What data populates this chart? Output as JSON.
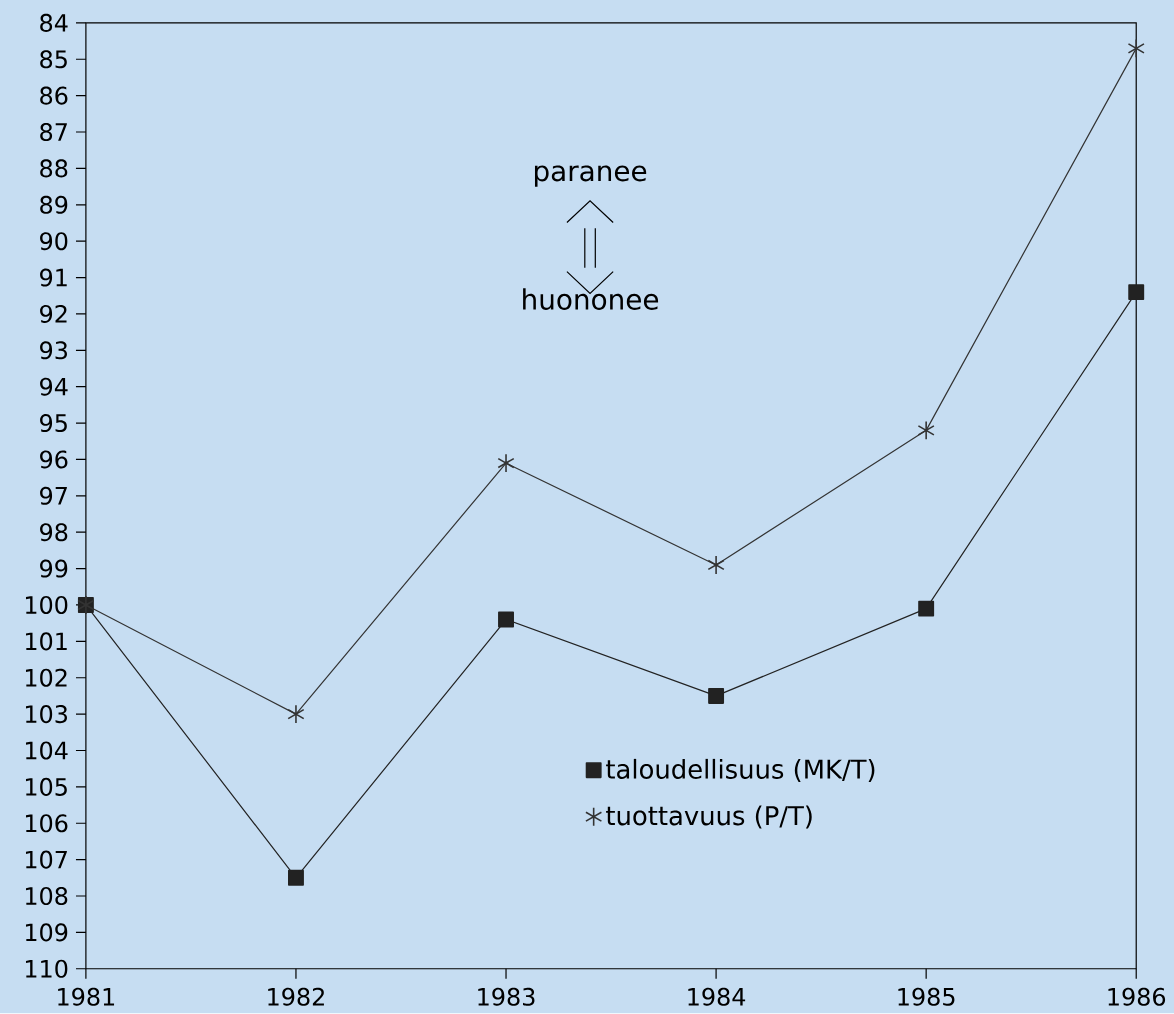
{
  "chart_data": {
    "type": "line",
    "x": [
      1981,
      1982,
      1983,
      1984,
      1985,
      1986
    ],
    "series": [
      {
        "name": "taloudellisuus (MK/T)",
        "color": "#222222",
        "marker": "square",
        "values": [
          100,
          107.5,
          100.4,
          102.5,
          100.1,
          91.4
        ]
      },
      {
        "name": "tuottavuus (P/T)",
        "color": "#333333",
        "marker": "cross",
        "values": [
          100,
          103.0,
          96.1,
          98.9,
          95.2,
          84.7
        ]
      }
    ],
    "xlim": [
      1981,
      1986
    ],
    "xticks": [
      1981,
      1982,
      1983,
      1984,
      1985,
      1986
    ],
    "ylim": [
      110,
      84
    ],
    "yticks": [
      84,
      85,
      86,
      87,
      88,
      89,
      90,
      91,
      92,
      93,
      94,
      95,
      96,
      97,
      98,
      99,
      100,
      101,
      102,
      103,
      104,
      105,
      106,
      107,
      108,
      109,
      110
    ],
    "line_style": "solid",
    "grid": false,
    "legend": "bottom right",
    "annotations": [
      "paranee",
      "huononee"
    ]
  }
}
